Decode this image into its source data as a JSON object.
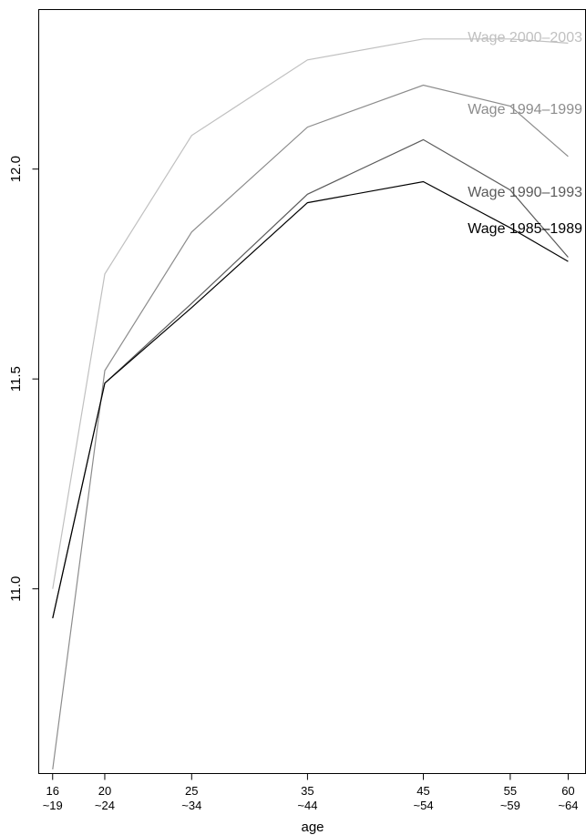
{
  "chart_data": {
    "type": "line",
    "title": "",
    "xlabel": "age",
    "ylabel": "",
    "x": [
      17.5,
      22,
      29.5,
      39.5,
      49.5,
      57,
      62
    ],
    "x_ticks": [
      {
        "x": 17.5,
        "top": "16",
        "bottom": "~19"
      },
      {
        "x": 22,
        "top": "20",
        "bottom": "~24"
      },
      {
        "x": 29.5,
        "top": "25",
        "bottom": "~34"
      },
      {
        "x": 39.5,
        "top": "35",
        "bottom": "~44"
      },
      {
        "x": 49.5,
        "top": "45",
        "bottom": "~54"
      },
      {
        "x": 57,
        "top": "55",
        "bottom": "~59"
      },
      {
        "x": 62,
        "top": "60",
        "bottom": "~64"
      }
    ],
    "y_ticks": [
      "11.0",
      "11.5",
      "12.0"
    ],
    "y_tick_values": [
      11.0,
      11.5,
      12.0
    ],
    "xlim": [
      16.3,
      63.5
    ],
    "ylim": [
      10.56,
      12.38
    ],
    "grid": false,
    "series": [
      {
        "name": "Wage 2000–2003",
        "color": "#c0c0c0",
        "values": [
          11.0,
          11.75,
          12.08,
          12.26,
          12.31,
          12.31,
          12.3
        ]
      },
      {
        "name": "Wage 1994–1999",
        "color": "#8c8c8c",
        "values": [
          10.57,
          11.52,
          11.85,
          12.1,
          12.2,
          12.15,
          12.03
        ]
      },
      {
        "name": "Wage 1990–1993",
        "color": "#5a5a5a",
        "values": [
          10.93,
          11.49,
          11.68,
          11.94,
          12.07,
          11.95,
          11.79
        ]
      },
      {
        "name": "Wage 1985–1989",
        "color": "#000000",
        "values": [
          10.93,
          11.49,
          11.67,
          11.92,
          11.97,
          11.86,
          11.78
        ]
      }
    ],
    "label_positions": [
      "top-right",
      "upper-right",
      "right",
      "right"
    ]
  }
}
